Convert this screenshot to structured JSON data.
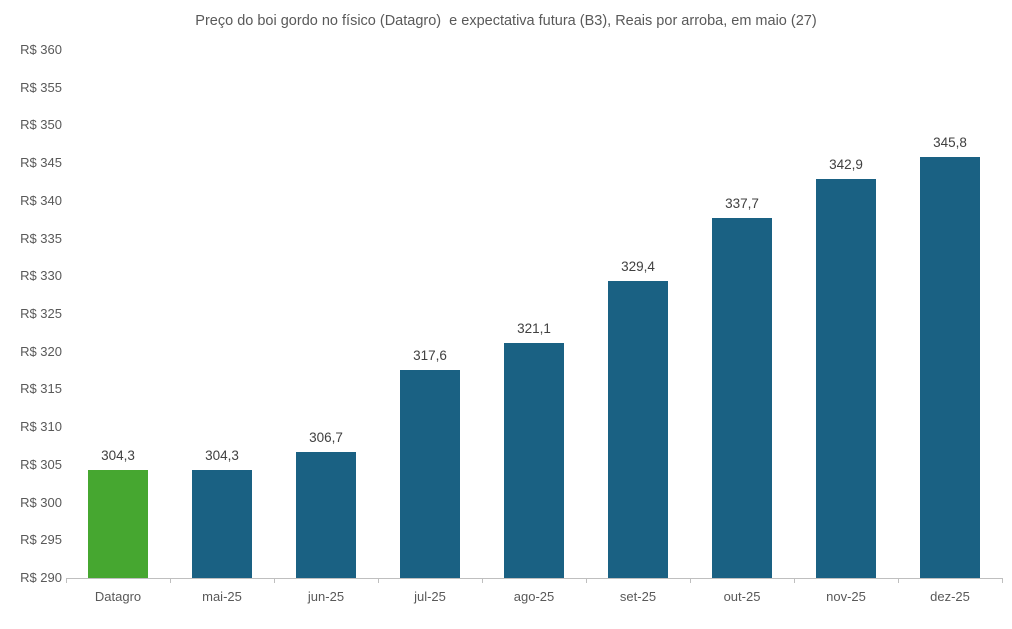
{
  "chart_data": {
    "type": "bar",
    "title": "Preço do boi gordo no físico (Datagro)  e expectativa futura (B3), Reais por arroba, em maio (27)",
    "categories": [
      "Datagro",
      "mai-25",
      "jun-25",
      "jul-25",
      "ago-25",
      "set-25",
      "out-25",
      "nov-25",
      "dez-25"
    ],
    "values": [
      304.3,
      304.3,
      306.7,
      317.6,
      321.1,
      329.4,
      337.7,
      342.9,
      345.8
    ],
    "value_labels": [
      "304,3",
      "304,3",
      "306,7",
      "317,6",
      "321,1",
      "329,4",
      "337,7",
      "342,9",
      "345,8"
    ],
    "highlight_index": 0,
    "y_axis": {
      "prefix": "R$ ",
      "min": 290,
      "max": 360,
      "step": 5
    },
    "xlabel": "",
    "ylabel": "",
    "legend": "none",
    "grid": false,
    "colors": {
      "highlight_bar": "#46a730",
      "default_bar": "#1a6183",
      "axis_line": "#bfbfbf",
      "axis_text": "#595959",
      "value_text": "#404040",
      "title_text": "#595959",
      "background": "#ffffff"
    }
  }
}
